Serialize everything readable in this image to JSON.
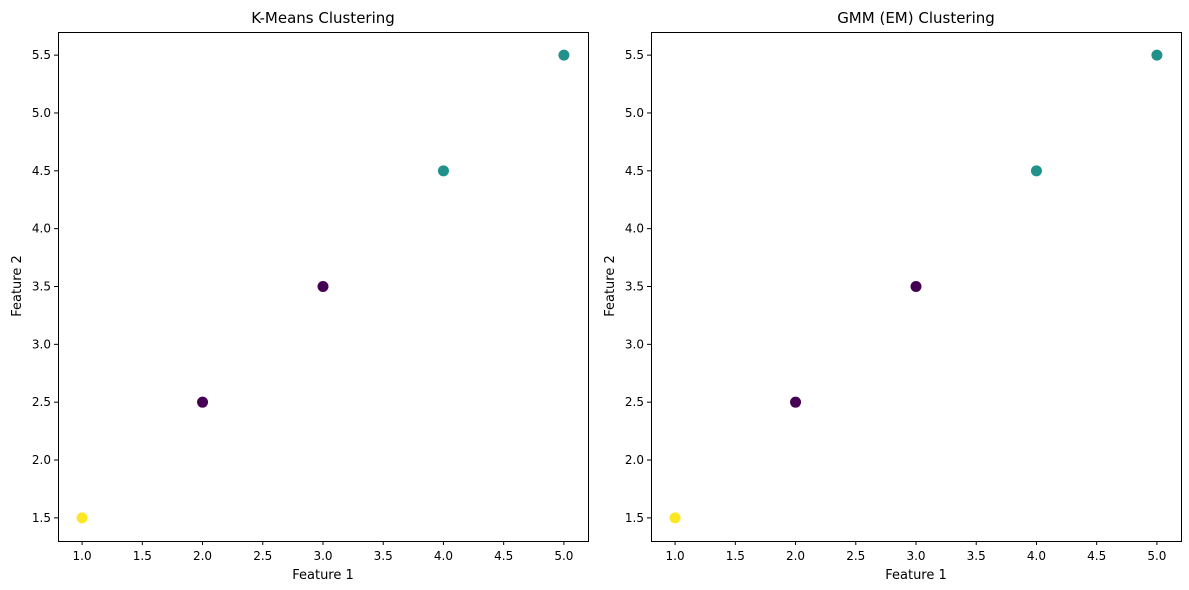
{
  "chart_data": [
    {
      "type": "scatter",
      "title": "K-Means Clustering",
      "xlabel": "Feature 1",
      "ylabel": "Feature 2",
      "xlim": [
        0.8,
        5.2
      ],
      "ylim": [
        1.3,
        5.7
      ],
      "xticks": [
        "1.0",
        "1.5",
        "2.0",
        "2.5",
        "3.0",
        "3.5",
        "4.0",
        "4.5",
        "5.0"
      ],
      "yticks": [
        "1.5",
        "2.0",
        "2.5",
        "3.0",
        "3.5",
        "4.0",
        "4.5",
        "5.0",
        "5.5"
      ],
      "grid": false,
      "points": [
        {
          "x": 1.0,
          "y": 1.5,
          "cluster": 2
        },
        {
          "x": 2.0,
          "y": 2.5,
          "cluster": 0
        },
        {
          "x": 3.0,
          "y": 3.5,
          "cluster": 0
        },
        {
          "x": 4.0,
          "y": 4.5,
          "cluster": 1
        },
        {
          "x": 5.0,
          "y": 5.5,
          "cluster": 1
        }
      ]
    },
    {
      "type": "scatter",
      "title": "GMM (EM) Clustering",
      "xlabel": "Feature 1",
      "ylabel": "Feature 2",
      "xlim": [
        0.8,
        5.2
      ],
      "ylim": [
        1.3,
        5.7
      ],
      "xticks": [
        "1.0",
        "1.5",
        "2.0",
        "2.5",
        "3.0",
        "3.5",
        "4.0",
        "4.5",
        "5.0"
      ],
      "yticks": [
        "1.5",
        "2.0",
        "2.5",
        "3.0",
        "3.5",
        "4.0",
        "4.5",
        "5.0",
        "5.5"
      ],
      "grid": false,
      "points": [
        {
          "x": 1.0,
          "y": 1.5,
          "cluster": 2
        },
        {
          "x": 2.0,
          "y": 2.5,
          "cluster": 0
        },
        {
          "x": 3.0,
          "y": 3.5,
          "cluster": 0
        },
        {
          "x": 4.0,
          "y": 4.5,
          "cluster": 1
        },
        {
          "x": 5.0,
          "y": 5.5,
          "cluster": 1
        }
      ]
    }
  ],
  "colors": {
    "cluster_0": "#440154",
    "cluster_1": "#21918c",
    "cluster_2": "#fde725",
    "axes": "#000000",
    "background": "#ffffff"
  }
}
